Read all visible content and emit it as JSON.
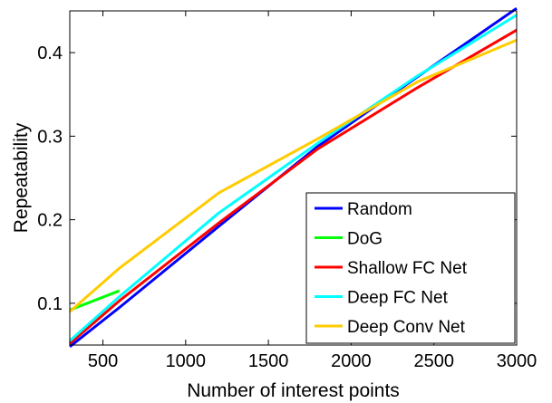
{
  "chart_data": {
    "type": "line",
    "title": "",
    "xlabel": "Number of interest points",
    "ylabel": "Repeatability",
    "xlim": [
      300,
      3000
    ],
    "ylim": [
      0.05,
      0.45
    ],
    "xticks": [
      500,
      1000,
      1500,
      2000,
      2500,
      3000
    ],
    "yticks": [
      0.1,
      0.2,
      0.3,
      0.4
    ],
    "xtick_labels": [
      "500",
      "1000",
      "1500",
      "2000",
      "2500",
      "3000"
    ],
    "ytick_labels": [
      "0.1",
      "0.2",
      "0.3",
      "0.4"
    ],
    "grid": false,
    "legend_position": "bottom-right",
    "series": [
      {
        "name": "Random",
        "color": "#0000ff",
        "x": [
          300,
          600,
          1200,
          1800,
          2400,
          3000
        ],
        "y": [
          0.048,
          0.095,
          0.192,
          0.288,
          0.371,
          0.453
        ]
      },
      {
        "name": "DoG",
        "color": "#00ff00",
        "x": [
          300,
          600
        ],
        "y": [
          0.092,
          0.115
        ]
      },
      {
        "name": "Shallow FC Net",
        "color": "#ff0000",
        "x": [
          300,
          600,
          1200,
          1800,
          2400,
          3000
        ],
        "y": [
          0.052,
          0.103,
          0.196,
          0.285,
          0.358,
          0.427
        ]
      },
      {
        "name": "Deep FC Net",
        "color": "#00ffff",
        "x": [
          300,
          600,
          1200,
          1800,
          2400,
          3000
        ],
        "y": [
          0.055,
          0.108,
          0.208,
          0.292,
          0.372,
          0.445
        ]
      },
      {
        "name": "Deep Conv Net",
        "color": "#ffcc00",
        "x": [
          300,
          600,
          1200,
          1800,
          2400,
          3000
        ],
        "y": [
          0.09,
          0.142,
          0.232,
          0.297,
          0.365,
          0.415
        ]
      }
    ]
  }
}
